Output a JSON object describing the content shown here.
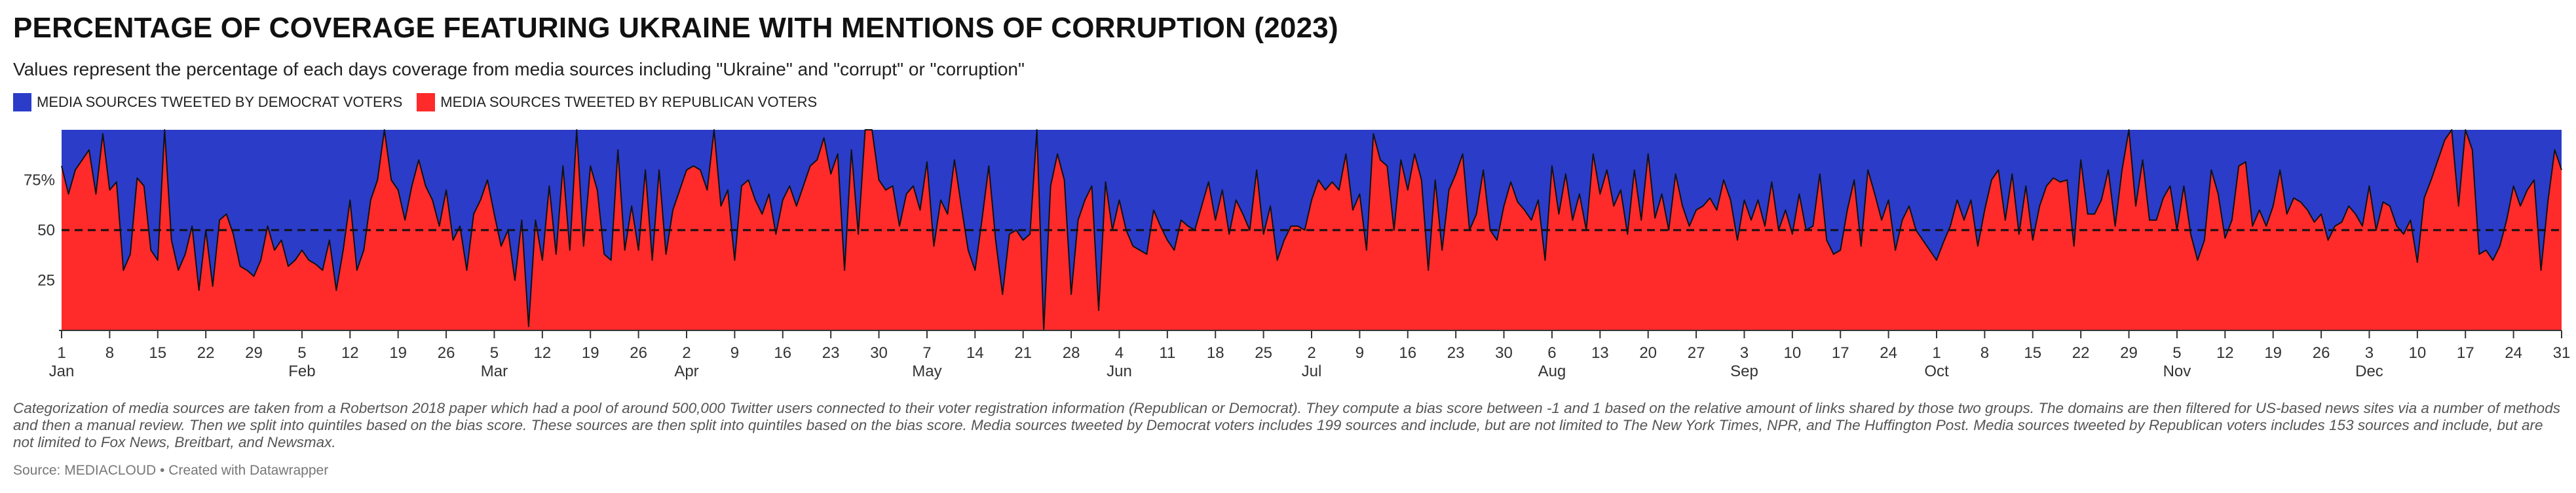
{
  "title": "PERCENTAGE OF COVERAGE FEATURING UKRAINE WITH MENTIONS OF CORRUPTION (2023)",
  "subtitle": "Values represent the percentage of each days coverage from media sources including \"Ukraine\" and \"corrupt\" or \"corruption\"",
  "notes": "Categorization of media sources are taken from a Robertson 2018 paper which had a pool of around 500,000 Twitter users connected to their voter registration information (Republican or Democrat). They compute a bias score between -1 and 1 based on the relative amount of links shared by those two groups. The domains are then filtered for US-based news sites via a number of methods and then a manual review. Then we split into quintiles based on the bias score. These sources are then split into quintiles based on the bias score. Media sources tweeted by Democrat voters includes 199 sources and include, but are not limited to The New York Times, NPR, and The Huffington Post. Media sources tweeted by Republican voters includes 153 sources and include, but are not limited to Fox News, Breitbart, and Newsmax.",
  "source": "Source: MEDIACLOUD • Created with Datawrapper",
  "colors": {
    "democrat": "#2b3cc9",
    "republican": "#ff2a2a",
    "line": "#111111",
    "axis": "#333333"
  },
  "chart_data": {
    "type": "area",
    "stacked": true,
    "ylim": [
      0,
      100
    ],
    "yticks": [
      25,
      50,
      75
    ],
    "reference_line": 50,
    "legend_position": "top-left",
    "legend": [
      "MEDIA SOURCES TWEETED BY DEMOCRAT VOTERS",
      "MEDIA SOURCES TWEETED BY REPUBLICAN VOTERS"
    ],
    "x_start": "2023-01-01",
    "x_end": "2023-12-31",
    "xtick_days": [
      "1",
      "8",
      "15",
      "22",
      "29",
      "5",
      "12",
      "19",
      "26",
      "5",
      "12",
      "19",
      "26",
      "2",
      "9",
      "16",
      "23",
      "30",
      "7",
      "14",
      "21",
      "28",
      "4",
      "11",
      "18",
      "25",
      "2",
      "9",
      "16",
      "23",
      "30",
      "6",
      "13",
      "20",
      "27",
      "3",
      "10",
      "17",
      "24",
      "1",
      "8",
      "15",
      "22",
      "29",
      "5",
      "12",
      "19",
      "26",
      "3",
      "10",
      "17",
      "24",
      "31"
    ],
    "months": [
      "Jan",
      "Feb",
      "Mar",
      "Apr",
      "May",
      "Jun",
      "Jul",
      "Aug",
      "Sep",
      "Oct",
      "Nov",
      "Dec"
    ],
    "series": [
      {
        "name": "MEDIA SOURCES TWEETED BY REPUBLICAN VOTERS",
        "values": [
          82,
          68,
          80,
          85,
          90,
          68,
          98,
          70,
          74,
          30,
          38,
          76,
          72,
          40,
          35,
          100,
          45,
          30,
          38,
          52,
          20,
          50,
          22,
          55,
          58,
          48,
          32,
          30,
          27,
          35,
          52,
          40,
          45,
          32,
          35,
          40,
          35,
          33,
          30,
          45,
          20,
          40,
          65,
          30,
          40,
          65,
          75,
          100,
          75,
          70,
          55,
          72,
          85,
          72,
          65,
          52,
          70,
          45,
          52,
          30,
          58,
          65,
          75,
          58,
          42,
          50,
          25,
          55,
          2,
          55,
          35,
          72,
          38,
          82,
          40,
          100,
          42,
          82,
          70,
          38,
          35,
          90,
          40,
          62,
          40,
          80,
          35,
          80,
          38,
          60,
          70,
          80,
          82,
          80,
          70,
          100,
          62,
          70,
          35,
          72,
          75,
          65,
          58,
          68,
          48,
          65,
          72,
          62,
          72,
          82,
          85,
          96,
          78,
          88,
          30,
          90,
          48,
          100,
          100,
          75,
          70,
          72,
          52,
          68,
          72,
          60,
          84,
          42,
          65,
          58,
          85,
          62,
          40,
          30,
          55,
          82,
          45,
          18,
          48,
          50,
          45,
          48,
          100,
          0,
          72,
          88,
          75,
          18,
          55,
          65,
          72,
          10,
          74,
          50,
          65,
          50,
          42,
          40,
          38,
          60,
          52,
          45,
          40,
          55,
          52,
          50,
          62,
          74,
          55,
          70,
          48,
          65,
          58,
          50,
          80,
          48,
          62,
          35,
          45,
          52,
          52,
          50,
          65,
          75,
          70,
          74,
          70,
          88,
          60,
          68,
          40,
          98,
          85,
          82,
          50,
          85,
          70,
          88,
          75,
          30,
          75,
          40,
          70,
          78,
          88,
          50,
          58,
          80,
          50,
          45,
          62,
          74,
          64,
          60,
          55,
          65,
          35,
          82,
          58,
          78,
          55,
          68,
          50,
          88,
          68,
          80,
          62,
          70,
          48,
          80,
          55,
          88,
          56,
          68,
          50,
          78,
          62,
          52,
          60,
          62,
          66,
          60,
          75,
          65,
          45,
          65,
          55,
          65,
          52,
          74,
          50,
          60,
          48,
          68,
          50,
          52,
          78,
          45,
          38,
          40,
          60,
          75,
          42,
          80,
          68,
          55,
          65,
          40,
          55,
          62,
          50,
          45,
          40,
          35,
          44,
          52,
          65,
          55,
          65,
          42,
          60,
          75,
          80,
          55,
          78,
          48,
          72,
          45,
          62,
          72,
          76,
          74,
          75,
          42,
          85,
          58,
          58,
          65,
          80,
          52,
          80,
          100,
          62,
          85,
          55,
          55,
          66,
          72,
          50,
          72,
          48,
          35,
          45,
          80,
          68,
          46,
          55,
          82,
          84,
          52,
          60,
          52,
          62,
          80,
          58,
          66,
          64,
          60,
          54,
          58,
          45,
          52,
          54,
          62,
          58,
          52,
          72,
          50,
          64,
          62,
          52,
          48,
          55,
          34,
          66,
          75,
          85,
          95,
          100,
          62,
          100,
          90,
          38,
          40,
          35,
          42,
          55,
          72,
          62,
          70,
          75,
          30,
          64,
          90,
          80,
          45,
          100,
          78
        ]
      },
      {
        "name": "MEDIA SOURCES TWEETED BY DEMOCRAT VOTERS",
        "values": "complement: 100 minus the Republican value for each day"
      }
    ]
  }
}
